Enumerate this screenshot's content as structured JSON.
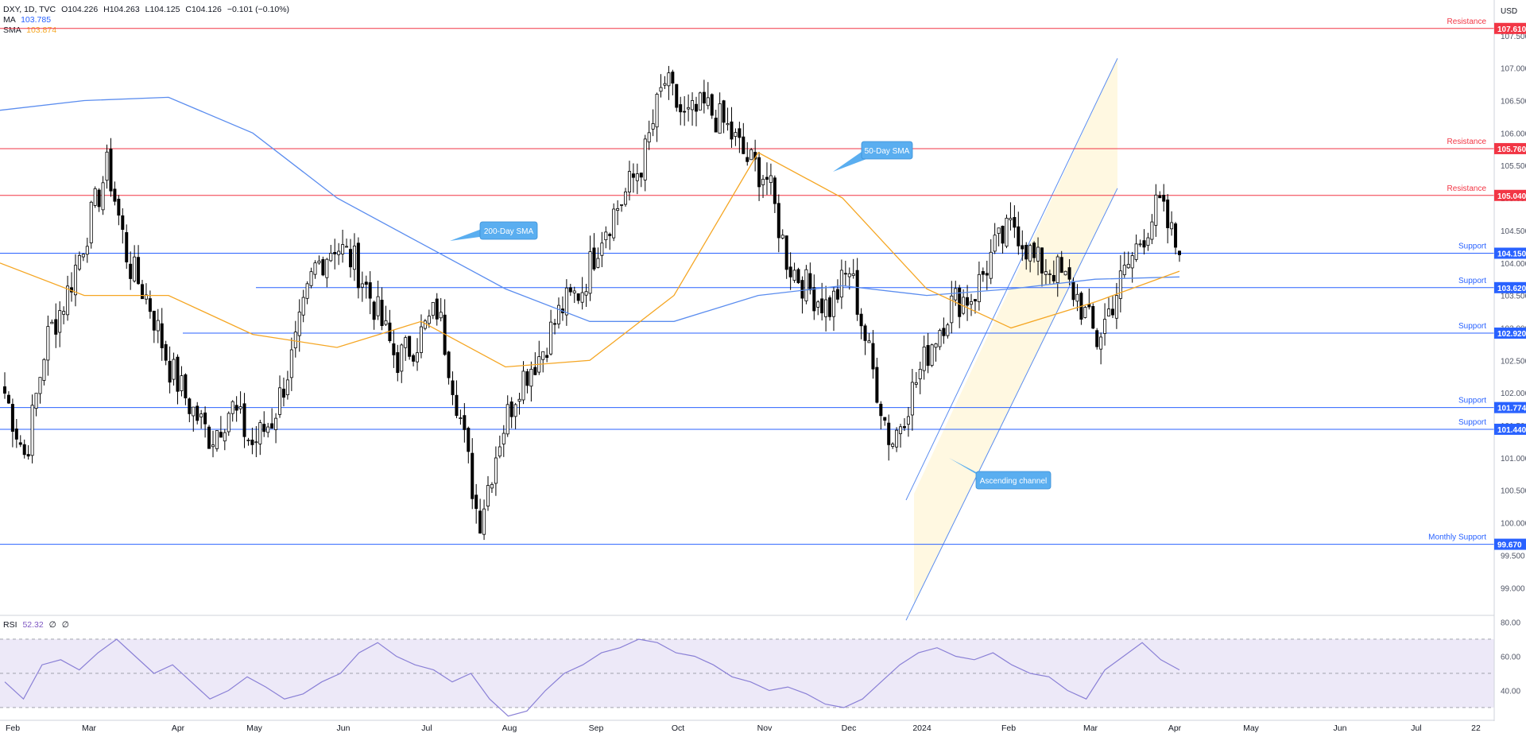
{
  "header": {
    "symbol_line": "DXY, 1D, TVC",
    "open_label": "O",
    "open": "104.226",
    "high_label": "H",
    "high": "104.263",
    "low_label": "L",
    "low": "104.125",
    "close_label": "C",
    "close": "104.126",
    "change": "−0.101 (−0.10%)",
    "ma_label": "MA",
    "ma_value": "103.785",
    "sma_label": "SMA",
    "sma_value": "103.874",
    "currency": "USD"
  },
  "rsi_legend": {
    "label": "RSI",
    "value": "52.32",
    "extra1": "∅",
    "extra2": "∅"
  },
  "colors": {
    "up": "#ffffff",
    "down": "#000000",
    "candle_edge": "#000000",
    "resistance": "#f23645",
    "support": "#2962ff",
    "ma200": "#5b8def",
    "sma50": "#f5a623",
    "channel_fill": "#fff8e1",
    "channel_line": "#5b8def",
    "callout": "#5aaef0",
    "rsi_line": "#8a80d6",
    "rsi_band": "#ede9f8"
  },
  "chart_data": [
    {
      "type": "candlestick",
      "title": "DXY, 1D, TVC",
      "ylim": [
        98.6,
        107.95
      ],
      "y_ticks": [
        "99.000",
        "99.500",
        "100.000",
        "100.500",
        "101.000",
        "101.500",
        "102.000",
        "102.500",
        "103.000",
        "103.500",
        "104.000",
        "104.500",
        "105.000",
        "105.500",
        "106.000",
        "106.500",
        "107.000",
        "107.500"
      ],
      "x_ticks": [
        "Feb",
        "Mar",
        "Apr",
        "May",
        "Jun",
        "Jul",
        "Aug",
        "Sep",
        "Oct",
        "Nov",
        "Dec",
        "2024",
        "Feb",
        "Mar",
        "Apr",
        "May",
        "Jun",
        "Jul",
        "22"
      ],
      "levels": [
        {
          "type": "Resistance",
          "value": 107.61,
          "label": "107.610"
        },
        {
          "type": "Resistance",
          "value": 105.76,
          "label": "105.760"
        },
        {
          "type": "Resistance",
          "value": 105.04,
          "label": "105.040"
        },
        {
          "type": "Support",
          "value": 104.15,
          "label": "104.150"
        },
        {
          "type": "Support",
          "value": 103.62,
          "label": "103.620"
        },
        {
          "type": "Support",
          "value": 102.92,
          "label": "102.920"
        },
        {
          "type": "Support",
          "value": 101.774,
          "label": "101.774"
        },
        {
          "type": "Support",
          "value": 101.44,
          "label": "101.440"
        },
        {
          "type": "Monthly Support",
          "value": 99.67,
          "label": "99.670"
        }
      ],
      "annotations": [
        "50-Day SMA",
        "200-Day SMA",
        "Ascending channel"
      ],
      "close_points": [
        {
          "x": "Feb",
          "y": 102.0
        },
        {
          "x": "Feb",
          "y": 101.0
        },
        {
          "x": "Feb",
          "y": 102.8
        },
        {
          "x": "Feb",
          "y": 103.5
        },
        {
          "x": "Mar",
          "y": 104.5
        },
        {
          "x": "Mar",
          "y": 105.5
        },
        {
          "x": "Mar",
          "y": 104.0
        },
        {
          "x": "Mar",
          "y": 103.4
        },
        {
          "x": "Apr",
          "y": 102.4
        },
        {
          "x": "Apr",
          "y": 101.8
        },
        {
          "x": "Apr",
          "y": 101.3
        },
        {
          "x": "Apr",
          "y": 101.8
        },
        {
          "x": "May",
          "y": 101.2
        },
        {
          "x": "May",
          "y": 101.6
        },
        {
          "x": "May",
          "y": 102.6
        },
        {
          "x": "May",
          "y": 103.9
        },
        {
          "x": "Jun",
          "y": 104.3
        },
        {
          "x": "Jun",
          "y": 104.0
        },
        {
          "x": "Jun",
          "y": 103.3
        },
        {
          "x": "Jun",
          "y": 102.5
        },
        {
          "x": "Jul",
          "y": 102.8
        },
        {
          "x": "Jul",
          "y": 103.3
        },
        {
          "x": "Jul",
          "y": 101.8
        },
        {
          "x": "Jul",
          "y": 100.0
        },
        {
          "x": "Aug",
          "y": 101.3
        },
        {
          "x": "Aug",
          "y": 102.2
        },
        {
          "x": "Aug",
          "y": 102.6
        },
        {
          "x": "Aug",
          "y": 103.3
        },
        {
          "x": "Sep",
          "y": 103.6
        },
        {
          "x": "Sep",
          "y": 104.5
        },
        {
          "x": "Sep",
          "y": 105.0
        },
        {
          "x": "Sep",
          "y": 105.6
        },
        {
          "x": "Oct",
          "y": 106.8
        },
        {
          "x": "Oct",
          "y": 106.2
        },
        {
          "x": "Oct",
          "y": 106.4
        },
        {
          "x": "Oct",
          "y": 106.1
        },
        {
          "x": "Nov",
          "y": 105.6
        },
        {
          "x": "Nov",
          "y": 105.3
        },
        {
          "x": "Nov",
          "y": 104.0
        },
        {
          "x": "Nov",
          "y": 103.6
        },
        {
          "x": "Dec",
          "y": 103.3
        },
        {
          "x": "Dec",
          "y": 103.9
        },
        {
          "x": "Dec",
          "y": 102.5
        },
        {
          "x": "Dec",
          "y": 101.2
        },
        {
          "x": "2024",
          "y": 102.0
        },
        {
          "x": "2024",
          "y": 102.8
        },
        {
          "x": "2024",
          "y": 103.4
        },
        {
          "x": "2024",
          "y": 103.5
        },
        {
          "x": "Feb",
          "y": 104.2
        },
        {
          "x": "Feb",
          "y": 104.6
        },
        {
          "x": "Feb",
          "y": 104.0
        },
        {
          "x": "Feb",
          "y": 103.9
        },
        {
          "x": "Mar",
          "y": 103.5
        },
        {
          "x": "Mar",
          "y": 102.8
        },
        {
          "x": "Mar",
          "y": 103.6
        },
        {
          "x": "Mar",
          "y": 104.3
        },
        {
          "x": "Apr",
          "y": 104.9
        },
        {
          "x": "Apr",
          "y": 104.126
        }
      ],
      "sma200_points": [
        {
          "x": "Feb",
          "y": 106.35
        },
        {
          "x": "Mar",
          "y": 106.5
        },
        {
          "x": "Apr",
          "y": 106.55
        },
        {
          "x": "May",
          "y": 106.0
        },
        {
          "x": "Jun",
          "y": 105.0
        },
        {
          "x": "Jul",
          "y": 104.3
        },
        {
          "x": "Aug",
          "y": 103.6
        },
        {
          "x": "Sep",
          "y": 103.1
        },
        {
          "x": "Oct",
          "y": 103.1
        },
        {
          "x": "Nov",
          "y": 103.5
        },
        {
          "x": "Dec",
          "y": 103.65
        },
        {
          "x": "2024",
          "y": 103.5
        },
        {
          "x": "Feb",
          "y": 103.6
        },
        {
          "x": "Mar",
          "y": 103.75
        },
        {
          "x": "Apr",
          "y": 103.785
        }
      ],
      "sma50_points": [
        {
          "x": "Feb",
          "y": 104.0
        },
        {
          "x": "Mar",
          "y": 103.5
        },
        {
          "x": "Apr",
          "y": 103.5
        },
        {
          "x": "May",
          "y": 102.9
        },
        {
          "x": "Jun",
          "y": 102.7
        },
        {
          "x": "Jul",
          "y": 103.1
        },
        {
          "x": "Aug",
          "y": 102.4
        },
        {
          "x": "Sep",
          "y": 102.5
        },
        {
          "x": "Oct",
          "y": 103.5
        },
        {
          "x": "Nov",
          "y": 105.7
        },
        {
          "x": "Dec",
          "y": 105.0
        },
        {
          "x": "2024",
          "y": 103.6
        },
        {
          "x": "Feb",
          "y": 103.0
        },
        {
          "x": "Mar",
          "y": 103.4
        },
        {
          "x": "Apr",
          "y": 103.874
        }
      ]
    },
    {
      "type": "line",
      "title": "RSI",
      "ylim": [
        23,
        83
      ],
      "y_ticks": [
        "80.00",
        "60.00",
        "40.00"
      ],
      "bands": [
        30,
        50,
        70
      ],
      "values": [
        45,
        35,
        55,
        58,
        52,
        62,
        70,
        60,
        50,
        55,
        45,
        35,
        40,
        48,
        42,
        35,
        38,
        45,
        50,
        62,
        68,
        60,
        55,
        52,
        45,
        50,
        35,
        25,
        28,
        40,
        50,
        55,
        62,
        65,
        70,
        68,
        62,
        60,
        55,
        48,
        45,
        40,
        42,
        38,
        32,
        30,
        35,
        45,
        55,
        62,
        65,
        60,
        58,
        62,
        55,
        50,
        48,
        40,
        35,
        52,
        60,
        68,
        58,
        52
      ]
    }
  ]
}
